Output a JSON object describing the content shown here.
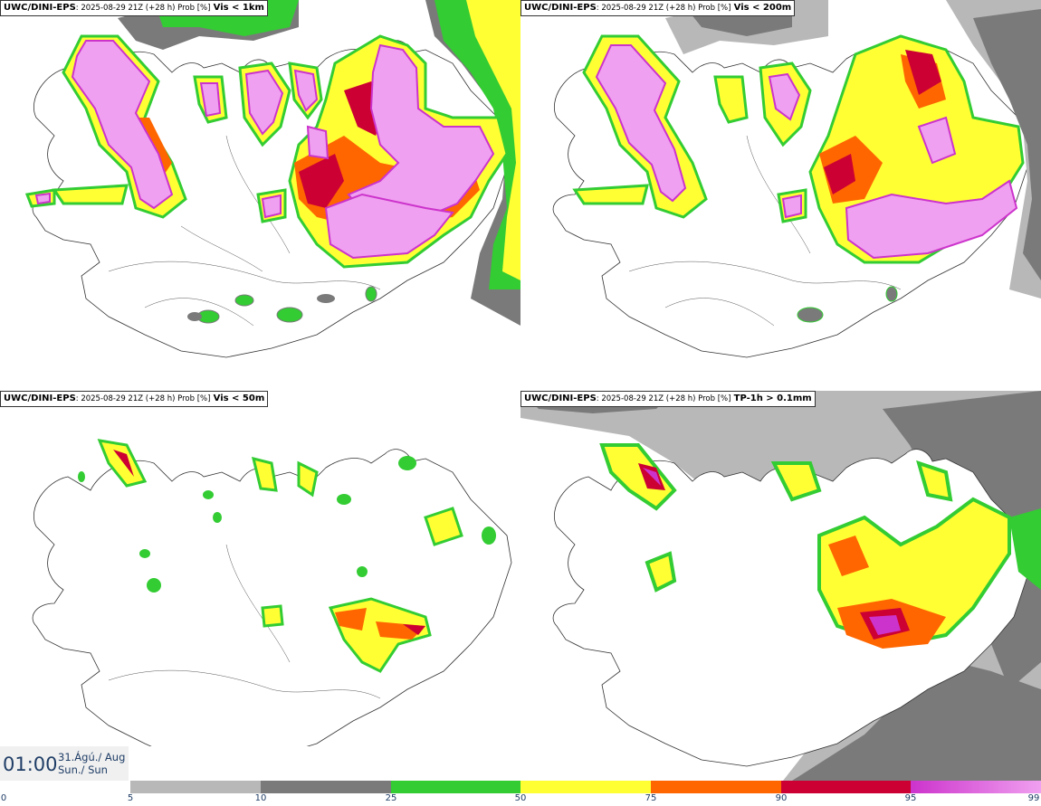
{
  "panels": [
    {
      "prefix": "UWC/DINI-EPS",
      "meta": ": 2025-08-29 21Z (+28 h) Prob [%]",
      "var": "Vis < 1km"
    },
    {
      "prefix": "UWC/DINI-EPS",
      "meta": ": 2025-08-29 21Z (+28 h) Prob [%]",
      "var": "Vis < 200m"
    },
    {
      "prefix": "UWC/DINI-EPS",
      "meta": ": 2025-08-29 21Z (+28 h) Prob [%]",
      "var": "Vis < 50m"
    },
    {
      "prefix": "UWC/DINI-EPS",
      "meta": ": 2025-08-29 21Z (+28 h) Prob [%]",
      "var": "TP-1h > 0.1mm"
    }
  ],
  "valid_time": {
    "time": "01:00",
    "date_line1": "31.Ágú./ Aug",
    "date_line2": "Sun./ Sun"
  },
  "colors": {
    "c5": "#b8b8b8",
    "c10": "#7a7a7a",
    "c25": "#33cc33",
    "c50": "#ffff33",
    "c75": "#ff6600",
    "c90": "#cc0033",
    "c95": "#cc33cc",
    "c99": "#f0a0f0"
  },
  "legend": {
    "ticks": [
      "0",
      "5",
      "10",
      "25",
      "50",
      "75",
      "90",
      "95",
      "99"
    ],
    "bands": [
      {
        "from": "5",
        "to": "10",
        "color": "#b8b8b8"
      },
      {
        "from": "10",
        "to": "25",
        "color": "#7a7a7a"
      },
      {
        "from": "25",
        "to": "50",
        "color": "#33cc33"
      },
      {
        "from": "50",
        "to": "75",
        "color": "#ffff33"
      },
      {
        "from": "75",
        "to": "90",
        "color": "#ff6600"
      },
      {
        "from": "90",
        "to": "95",
        "color": "#cc0033"
      },
      {
        "from": "95",
        "to": "99",
        "color": "#cc33cc"
      },
      {
        "from": "99",
        "to": "",
        "color": "#f0a0f0"
      }
    ]
  }
}
